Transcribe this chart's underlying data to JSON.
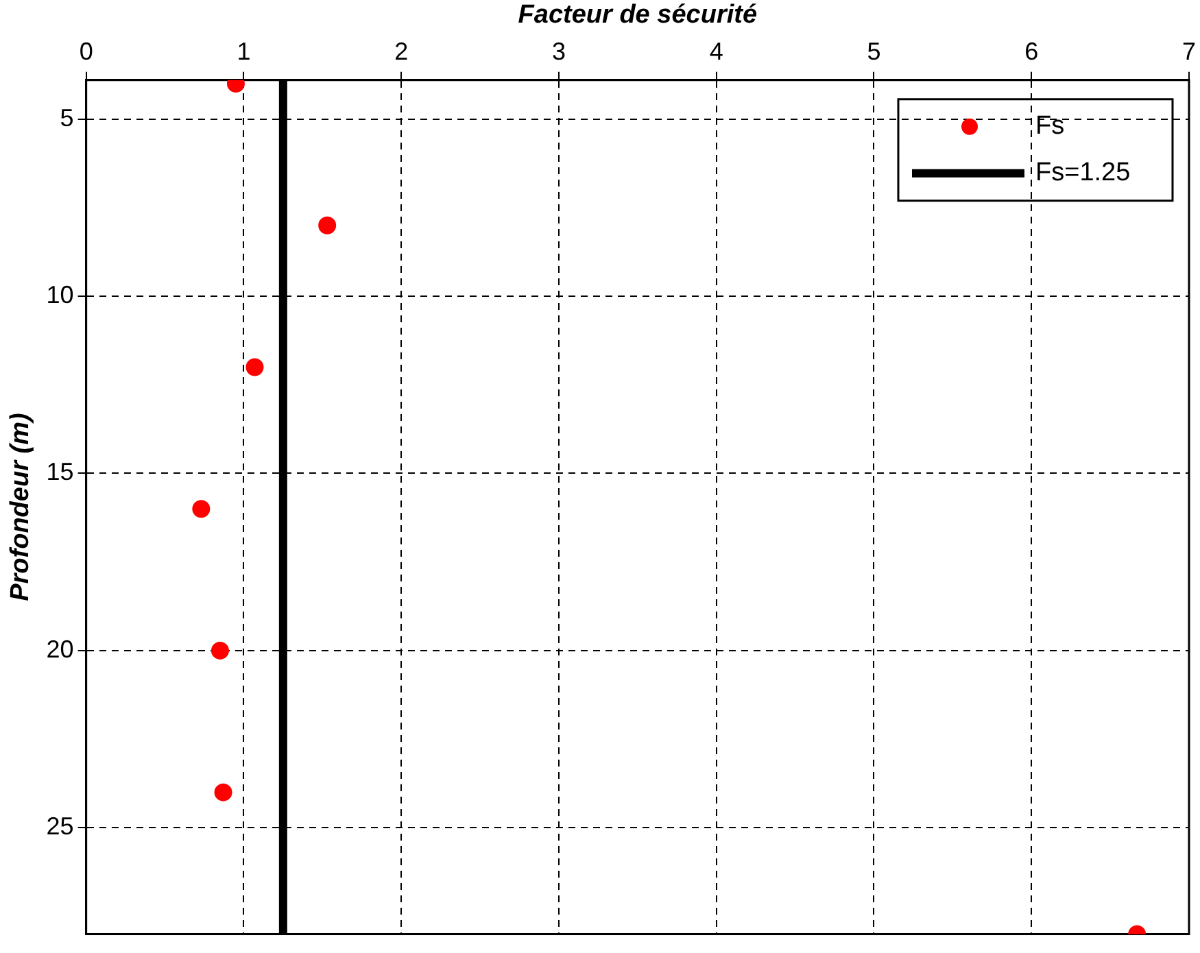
{
  "chart_data": {
    "type": "scatter",
    "xlabel": "Facteur de sécurité",
    "ylabel": "Profondeur (m)",
    "series": [
      {
        "name": "Fs",
        "color": "#ff0000",
        "x": [
          0.95,
          1.53,
          1.07,
          0.73,
          0.85,
          0.87,
          6.67
        ],
        "values": [
          4,
          8,
          12,
          16,
          20,
          24,
          28
        ]
      }
    ],
    "xlim": [
      0,
      7
    ],
    "xticks": [
      0,
      1,
      2,
      3,
      4,
      5,
      6,
      7
    ],
    "ylim": [
      28,
      3.9
    ],
    "yticks": [
      5,
      10,
      15,
      20,
      25
    ],
    "ref_lines": [
      {
        "axis": "x",
        "value": 1.25,
        "label": "Fs=1.25",
        "color": "#000000",
        "line_style": "solid"
      }
    ],
    "grid": true,
    "legend": "top right",
    "marker": "circle"
  }
}
